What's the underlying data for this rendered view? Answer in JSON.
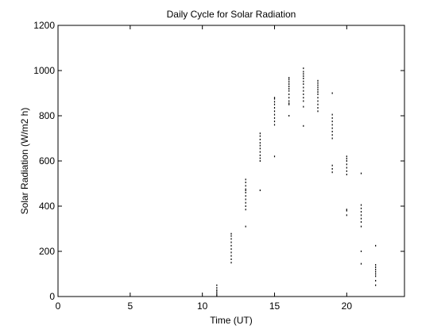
{
  "chart_data": {
    "type": "scatter",
    "title": "Daily Cycle for Solar Radiation",
    "xlabel": "Time (UT)",
    "ylabel": "Solar Radiation (W/m2 h)",
    "xlim": [
      0,
      24
    ],
    "ylim": [
      0,
      1200
    ],
    "xticks": [
      0,
      5,
      10,
      15,
      20
    ],
    "yticks": [
      0,
      200,
      400,
      600,
      800,
      1000,
      1200
    ],
    "grid": false,
    "legend": "none",
    "marker_color": "#000000",
    "series": [
      {
        "x": [
          11,
          11,
          11,
          11,
          11,
          11,
          12,
          12,
          12,
          12,
          12,
          12,
          12,
          12,
          12,
          12,
          13,
          13,
          13,
          13,
          13,
          13,
          13,
          13,
          13,
          13,
          13,
          13,
          14,
          14,
          14,
          14,
          14,
          14,
          14,
          14,
          14,
          14,
          14,
          15,
          15,
          15,
          15,
          15,
          15,
          15,
          15,
          15,
          15,
          15,
          16,
          16,
          16,
          16,
          16,
          16,
          16,
          16,
          16,
          16,
          16,
          16,
          16,
          17,
          17,
          17,
          17,
          17,
          17,
          17,
          17,
          17,
          17,
          17,
          17,
          17,
          17,
          18,
          18,
          18,
          18,
          18,
          18,
          18,
          18,
          18,
          18,
          18,
          18,
          19,
          19,
          19,
          19,
          19,
          19,
          19,
          19,
          19,
          19,
          19,
          19,
          20,
          20,
          20,
          20,
          20,
          20,
          20,
          20,
          20,
          20,
          21,
          21,
          21,
          21,
          21,
          21,
          21,
          21,
          21,
          21,
          22,
          22,
          22,
          22,
          22,
          22,
          22,
          22,
          22
        ],
        "y": [
          5,
          12,
          20,
          28,
          38,
          50,
          150,
          165,
          180,
          195,
          210,
          225,
          240,
          255,
          268,
          278,
          310,
          385,
          400,
          415,
          430,
          445,
          460,
          475,
          490,
          505,
          518,
          470,
          600,
          612,
          625,
          640,
          655,
          668,
          680,
          695,
          710,
          722,
          470,
          620,
          760,
          775,
          790,
          805,
          820,
          835,
          850,
          862,
          875,
          880,
          800,
          850,
          865,
          880,
          895,
          910,
          920,
          930,
          940,
          950,
          960,
          968,
          855,
          755,
          840,
          880,
          895,
          910,
          925,
          940,
          952,
          965,
          975,
          985,
          995,
          1010,
          865,
          820,
          835,
          850,
          865,
          880,
          895,
          905,
          915,
          925,
          935,
          945,
          955,
          550,
          565,
          580,
          700,
          715,
          730,
          745,
          760,
          775,
          790,
          805,
          900,
          360,
          380,
          540,
          555,
          570,
          585,
          600,
          610,
          620,
          385,
          145,
          200,
          310,
          330,
          345,
          360,
          375,
          390,
          405,
          545,
          50,
          70,
          90,
          100,
          110,
          120,
          130,
          140,
          225
        ]
      }
    ]
  }
}
